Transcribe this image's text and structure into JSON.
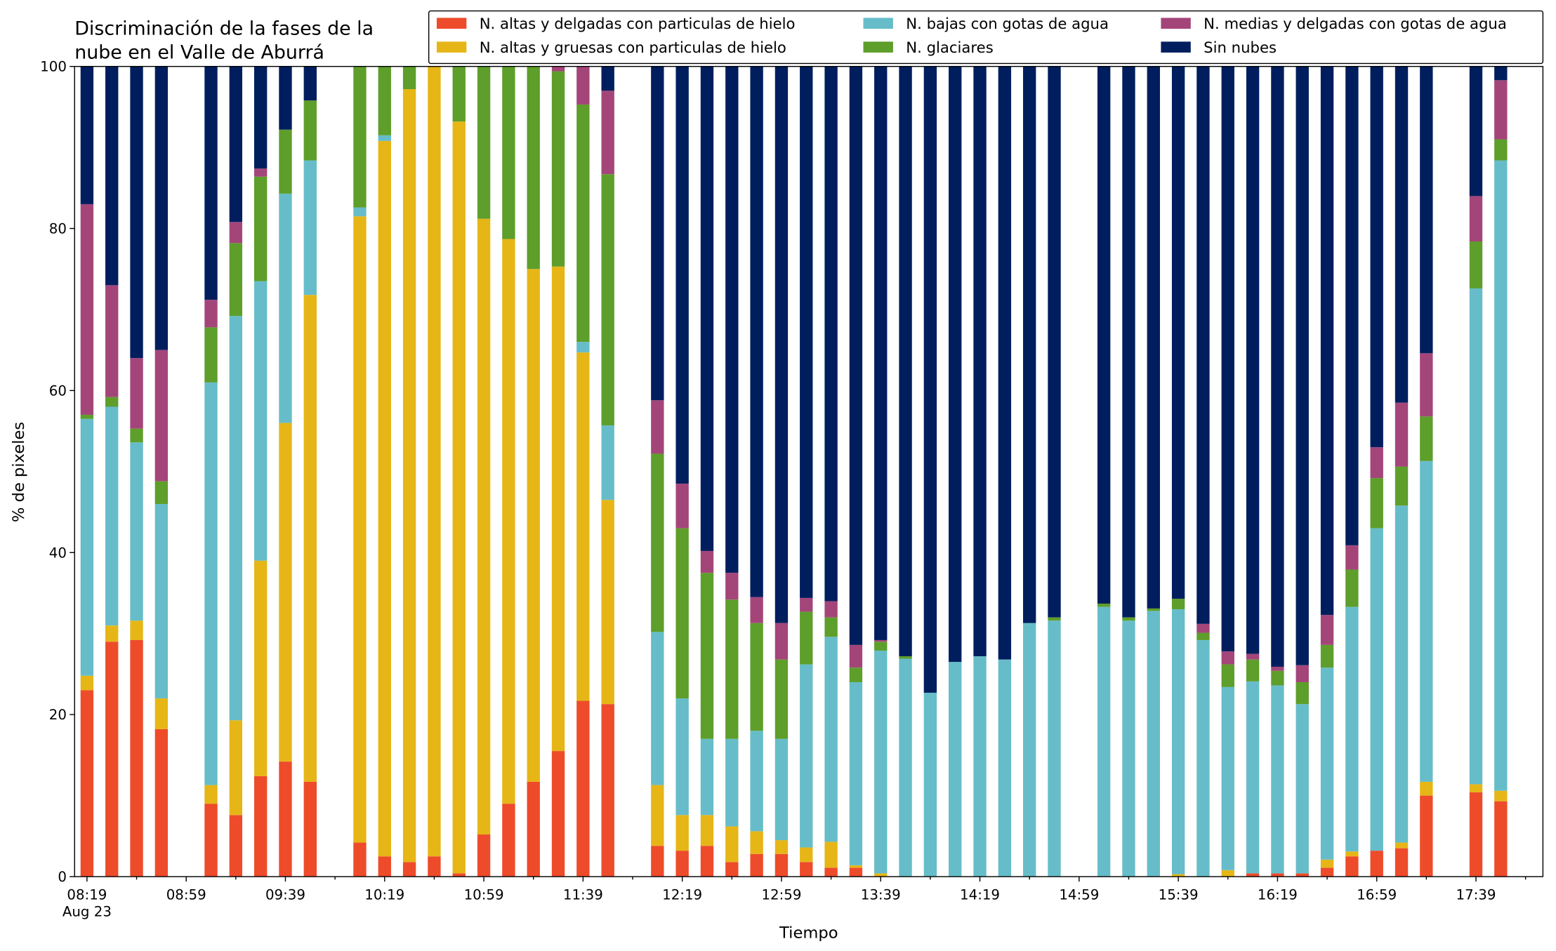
{
  "chart_data": {
    "type": "stacked_bar",
    "title": [
      "Discriminación de la fases de la",
      "nube en el Valle de Aburrá"
    ],
    "x_label": "Tiempo",
    "y_label": "% de pixeles",
    "x": [
      "08:19",
      "08:29",
      "08:39",
      "08:49",
      "09:09",
      "09:19",
      "09:29",
      "09:39",
      "09:49",
      "10:09",
      "10:19",
      "10:29",
      "10:39",
      "10:49",
      "10:59",
      "11:09",
      "11:19",
      "11:29",
      "11:39",
      "11:49",
      "12:09",
      "12:19",
      "12:29",
      "12:39",
      "12:49",
      "12:59",
      "13:09",
      "13:19",
      "13:29",
      "13:39",
      "13:49",
      "13:59",
      "14:09",
      "14:19",
      "14:29",
      "14:39",
      "14:49",
      "15:09",
      "15:19",
      "15:29",
      "15:39",
      "15:49",
      "15:59",
      "16:09",
      "16:19",
      "16:29",
      "16:39",
      "16:49",
      "16:59",
      "17:09",
      "17:19",
      "17:39",
      "17:49"
    ],
    "series": [
      {
        "name": "N. altas y delgadas con particulas de hielo",
        "color": "#ee4b2b",
        "values": [
          23,
          29,
          29.2,
          18.2,
          9,
          7.6,
          12.4,
          14.2,
          11.7,
          4.2,
          2.5,
          1.8,
          2.5,
          0.4,
          5.2,
          9,
          11.7,
          15.5,
          21.7,
          21.3,
          3.8,
          3.2,
          3.8,
          1.8,
          2.8,
          2.8,
          1.8,
          1.1,
          1.1,
          0,
          0,
          0,
          0,
          0,
          0,
          0,
          0,
          0,
          0,
          0,
          0,
          0,
          0,
          0.4,
          0.4,
          0.4,
          1.1,
          2.5,
          3.2,
          3.5,
          10,
          10.4,
          9.3
        ]
      },
      {
        "name": "N. altas y gruesas con particulas de hielo",
        "color": "#e6b617",
        "values": [
          1.8,
          2,
          2.4,
          3.8,
          2.3,
          11.7,
          26.6,
          41.8,
          60.1,
          77.3,
          88.3,
          95.4,
          97.5,
          92.8,
          76,
          69.7,
          63.3,
          59.8,
          43,
          25.2,
          7.5,
          4.4,
          3.8,
          4.4,
          2.8,
          1.7,
          1.8,
          3.2,
          0.3,
          0.4,
          0,
          0,
          0,
          0,
          0,
          0,
          0,
          0,
          0,
          0,
          0.3,
          0,
          0.8,
          0,
          0,
          0,
          1,
          0.6,
          0,
          0.7,
          1.7,
          1,
          1.3
        ]
      },
      {
        "name": "N. bajas con gotas de agua",
        "color": "#66bdc9",
        "values": [
          31.7,
          27,
          22,
          24,
          49.7,
          49.9,
          34.5,
          28.3,
          16.6,
          1.1,
          0.7,
          0,
          0,
          0,
          0,
          0,
          0,
          0,
          1.3,
          9.2,
          18.9,
          14.4,
          9.4,
          10.8,
          12.4,
          12.5,
          22.6,
          25.3,
          22.6,
          27.5,
          26.9,
          22.7,
          26.5,
          27.2,
          26.8,
          31.3,
          31.6,
          33.3,
          31.6,
          32.8,
          32.7,
          29.2,
          22.6,
          23.7,
          23.2,
          20.9,
          23.7,
          30.2,
          39.8,
          41.6,
          39.6,
          61.2,
          77.8
        ]
      },
      {
        "name": "N. glaciares",
        "color": "#5e9e2b",
        "values": [
          0.5,
          1.2,
          1.7,
          2.8,
          6.8,
          9,
          12.9,
          7.9,
          7.4,
          17.4,
          8.5,
          2.8,
          0,
          6.8,
          18.8,
          21.3,
          25,
          24.1,
          29.3,
          31,
          22,
          21,
          20.5,
          17.2,
          13.3,
          9.8,
          6.5,
          2.4,
          1.8,
          1.1,
          0.3,
          0,
          0,
          0,
          0,
          0,
          0.4,
          0.4,
          0.4,
          0.3,
          1.3,
          0.9,
          2.8,
          2.7,
          1.8,
          2.7,
          2.8,
          4.6,
          6.2,
          4.8,
          5.5,
          5.8,
          2.6
        ]
      },
      {
        "name": "N. medias y delgadas con gotas de agua",
        "color": "#a4457a",
        "values": [
          26,
          13.8,
          8.7,
          16.2,
          3.4,
          2.6,
          1,
          0,
          0,
          0,
          0,
          0,
          0,
          0,
          0,
          0,
          0,
          0.6,
          4.7,
          10.3,
          6.6,
          5.5,
          2.7,
          3.3,
          3.2,
          4.5,
          1.7,
          2,
          2.8,
          0.2,
          0,
          0,
          0,
          0,
          0,
          0,
          0,
          0,
          0,
          0,
          0,
          1.1,
          1.6,
          0.7,
          0.5,
          2.1,
          3.7,
          3,
          3.8,
          7.9,
          7.8,
          5.6,
          7.3
        ]
      },
      {
        "name": "Sin nubes",
        "color": "#001e5e",
        "values": [
          17,
          27,
          36,
          35,
          28.8,
          19.2,
          12.6,
          7.8,
          4.2,
          0,
          0,
          0,
          0,
          0,
          0,
          0,
          0,
          0,
          0,
          3,
          41.2,
          51.5,
          59.8,
          62.5,
          65.5,
          68.7,
          65.6,
          66,
          71.4,
          70.8,
          72.8,
          77.3,
          73.5,
          72.8,
          73.2,
          68.7,
          68,
          66.3,
          68,
          66.9,
          65.7,
          68.8,
          72.2,
          72.5,
          74.1,
          73.9,
          67.7,
          59.1,
          47,
          41.5,
          35.4,
          16,
          1.7
        ]
      }
    ],
    "xlim": [
      "08:14",
      "18:06"
    ],
    "xticks": [
      "08:19",
      "08:59",
      "09:39",
      "10:19",
      "10:59",
      "11:39",
      "12:19",
      "12:59",
      "13:39",
      "14:19",
      "14:59",
      "15:39",
      "16:19",
      "16:59",
      "17:39"
    ],
    "x_date_label": "Aug 23",
    "xminorticks": [
      "08:39",
      "09:19",
      "09:59",
      "10:39",
      "11:19",
      "11:59",
      "12:39",
      "13:19",
      "13:59",
      "14:39",
      "15:19",
      "15:59",
      "16:39",
      "17:19",
      "17:59"
    ],
    "ylim": [
      0,
      100
    ],
    "yticks": [
      0,
      20,
      40,
      60,
      80,
      100
    ],
    "legend": "top right"
  }
}
